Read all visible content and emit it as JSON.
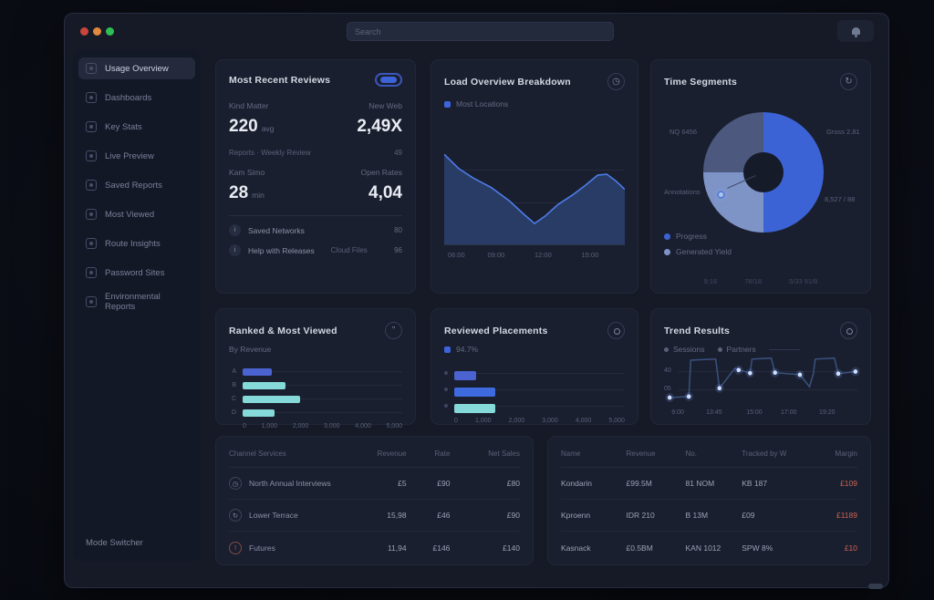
{
  "window": {
    "search_placeholder": "Search"
  },
  "sidebar": {
    "items": [
      {
        "label": "Usage Overview",
        "active": true
      },
      {
        "label": "Dashboards"
      },
      {
        "label": "Key Stats"
      },
      {
        "label": "Live Preview"
      },
      {
        "label": "Saved Reports"
      },
      {
        "label": "Most Viewed"
      },
      {
        "label": "Route Insights"
      },
      {
        "label": "Password Sites"
      },
      {
        "label": "Environmental Reports"
      }
    ],
    "footer": "Mode Switcher"
  },
  "cards": {
    "reviews": {
      "title": "Most Recent Reviews",
      "stats": [
        {
          "label": "Kind Matter",
          "value": "220",
          "unit": "avg"
        },
        {
          "label": "New Web",
          "value": "2,49X",
          "unit": ""
        },
        {
          "label": "Kam Simo",
          "value": "28",
          "unit": "min"
        },
        {
          "label": "Open Rates",
          "value": "4,04",
          "unit": ""
        }
      ],
      "meta_left": "Reports · Weekly Review",
      "meta_right": "49",
      "rows": [
        {
          "label": "Saved Networks",
          "extra": "",
          "value": "80"
        },
        {
          "label": "Help with Releases",
          "extra": "Cloud Files",
          "value": "96"
        }
      ]
    },
    "performance": {
      "title": "Load Overview Breakdown",
      "legend": "Most Locations",
      "chart_data": {
        "type": "area",
        "series": [
          {
            "name": "Most Locations",
            "points": [
              [
                0,
                5
              ],
              [
                0.08,
                20
              ],
              [
                0.16,
                30
              ],
              [
                0.26,
                40
              ],
              [
                0.36,
                54
              ],
              [
                0.44,
                68
              ],
              [
                0.5,
                78
              ],
              [
                0.56,
                70
              ],
              [
                0.63,
                58
              ],
              [
                0.71,
                48
              ],
              [
                0.78,
                38
              ],
              [
                0.85,
                27
              ],
              [
                0.9,
                26
              ],
              [
                0.95,
                33
              ],
              [
                1,
                42
              ]
            ]
          }
        ],
        "x_ticks": [
          "06:00",
          "09:00",
          "12:00",
          "15:00"
        ],
        "line_color": "#4d7ce8",
        "fill_color": "#2b3f6b"
      }
    },
    "segments": {
      "title": "Time Segments",
      "labels": {
        "left_top": "NQ 6456",
        "right_top": "Gross 2.81",
        "left_bottom": "Annotations",
        "right_bottom": "8,527 / 88"
      },
      "legend": [
        {
          "label": "Progress",
          "color": "#3c63d6"
        },
        {
          "label": "Generated Yield",
          "color": "#7e93c6"
        }
      ],
      "footer": [
        "9:16",
        "78/18",
        "5/33 91/8"
      ],
      "chart_data": {
        "type": "pie",
        "slices": [
          {
            "label": "Progress",
            "pct": 50,
            "color": "#3c63d6"
          },
          {
            "label": "Generated Yield",
            "pct": 25,
            "color": "#7e93c6"
          },
          {
            "label": "Other",
            "pct": 25,
            "color": "#4c587e"
          }
        ]
      }
    },
    "ranked": {
      "title": "Ranked & Most Viewed",
      "legend": "By Revenue",
      "chart_data": {
        "type": "bar",
        "orientation": "horizontal",
        "categories": [
          "A",
          "B",
          "C",
          "D"
        ],
        "values": [
          900,
          1350,
          1800,
          1000
        ],
        "max": 5000,
        "colors": [
          "#4a63d0",
          "#86d9d9",
          "#86d9d9",
          "#86d9d9"
        ],
        "x_ticks": [
          "0",
          "1,000",
          "2,000",
          "3,000",
          "4,000",
          "5,000"
        ]
      }
    },
    "placements": {
      "title": "Reviewed Placements",
      "legend": "94.7%",
      "chart_data": {
        "type": "bar",
        "orientation": "horizontal",
        "categories": [
          "A",
          "B",
          "C"
        ],
        "values": [
          650,
          1200,
          1200
        ],
        "max": 5000,
        "colors": [
          "#4a63d0",
          "#3e6ae0",
          "#86d9d9"
        ],
        "x_ticks": [
          "0",
          "1,000",
          "2,000",
          "3,000",
          "4,000",
          "5,000"
        ]
      }
    },
    "trend": {
      "title": "Trend Results",
      "legend": [
        {
          "label": "Sessions"
        },
        {
          "label": "Partners"
        }
      ],
      "chart_data": {
        "type": "line",
        "style": "step",
        "y_ticks": [
          "40",
          "05"
        ],
        "x_ticks": [
          "9:00",
          "13:45",
          "15:00",
          "17:00",
          "19:20"
        ],
        "line": [
          [
            0.02,
            0.86
          ],
          [
            0.12,
            0.84
          ],
          [
            0.13,
            0.14
          ],
          [
            0.26,
            0.12
          ],
          [
            0.28,
            0.68
          ],
          [
            0.36,
            0.3
          ],
          [
            0.44,
            0.39
          ],
          [
            0.45,
            0.12
          ],
          [
            0.55,
            0.1
          ],
          [
            0.57,
            0.38
          ],
          [
            0.7,
            0.42
          ],
          [
            0.75,
            0.65
          ],
          [
            0.77,
            0.4
          ],
          [
            0.78,
            0.12
          ],
          [
            0.88,
            0.1
          ],
          [
            0.9,
            0.4
          ],
          [
            0.99,
            0.36
          ]
        ],
        "dots": [
          [
            0.02,
            0.86
          ],
          [
            0.12,
            0.84
          ],
          [
            0.28,
            0.68
          ],
          [
            0.38,
            0.33
          ],
          [
            0.44,
            0.39
          ],
          [
            0.57,
            0.38
          ],
          [
            0.7,
            0.42
          ],
          [
            0.9,
            0.4
          ],
          [
            0.99,
            0.36
          ]
        ],
        "line_color": "#39517e"
      }
    }
  },
  "tables": {
    "left": {
      "headers": [
        "Channel Services",
        "Revenue",
        "Rate",
        "Net Sales"
      ],
      "rows": [
        {
          "name": "North Annual Interviews",
          "c2": "£5",
          "c3": "£90",
          "c4": "£80"
        },
        {
          "name": "Lower Terrace",
          "c2": "15,98",
          "c3": "£46",
          "c4": "£90"
        },
        {
          "name": "Futures",
          "c2": "11,94",
          "c3": "£146",
          "c4": "£140"
        }
      ]
    },
    "right": {
      "headers": [
        "Name",
        "Revenue",
        "No.",
        "Tracked by W",
        "Margin"
      ],
      "rows": [
        {
          "c1": "Kondarin",
          "c2": "£99.5M",
          "c3": "81 NOM",
          "c4": "KB 187",
          "c5": "£109"
        },
        {
          "c1": "Kproenn",
          "c2": "IDR 210",
          "c3": "B 13M",
          "c4": "£09",
          "c5": "£1189"
        },
        {
          "c1": "Kasnack",
          "c2": "£0.5BM",
          "c3": "KAN 1012",
          "c4": "SPW 8%",
          "c5": "£10"
        }
      ]
    }
  },
  "colors": {
    "accent_blue": "#3e63dd",
    "teal": "#86d9d9",
    "periwinkle": "#7e93c6",
    "slate": "#4c587e",
    "negative": "#cf6352"
  }
}
